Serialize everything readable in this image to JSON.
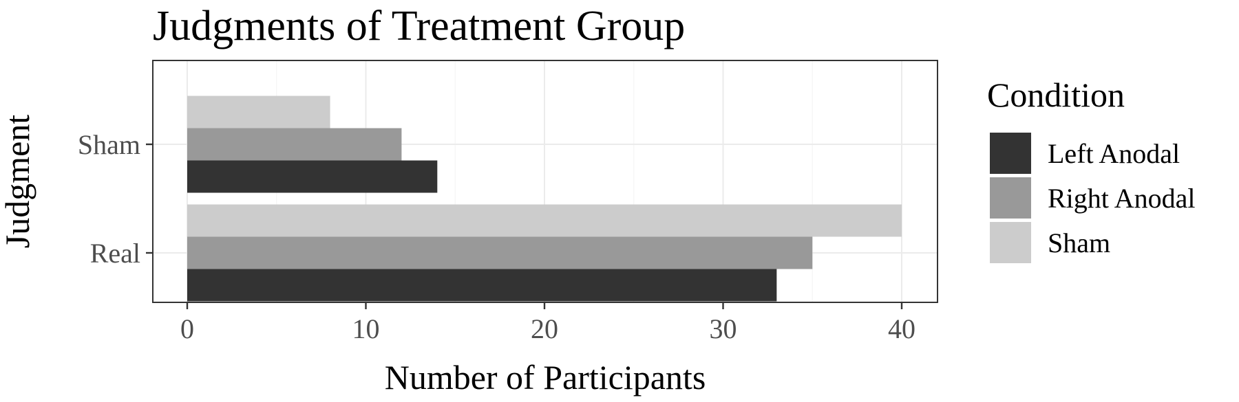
{
  "chart_data": {
    "type": "bar",
    "orientation": "horizontal",
    "title": "Judgments of Treatment Group",
    "xlabel": "Number of Participants",
    "ylabel": "Judgment",
    "categories": [
      "Real",
      "Sham"
    ],
    "series": [
      {
        "name": "Left Anodal",
        "values": [
          33,
          14
        ],
        "color": "#333333"
      },
      {
        "name": "Right Anodal",
        "values": [
          35,
          12
        ],
        "color": "#999999"
      },
      {
        "name": "Sham",
        "values": [
          40,
          8
        ],
        "color": "#cccccc"
      }
    ],
    "xlim": [
      0,
      40
    ],
    "xticks": [
      "0",
      "10",
      "20",
      "30",
      "40"
    ],
    "grid": true,
    "legend": {
      "title": "Condition",
      "position": "right"
    }
  }
}
